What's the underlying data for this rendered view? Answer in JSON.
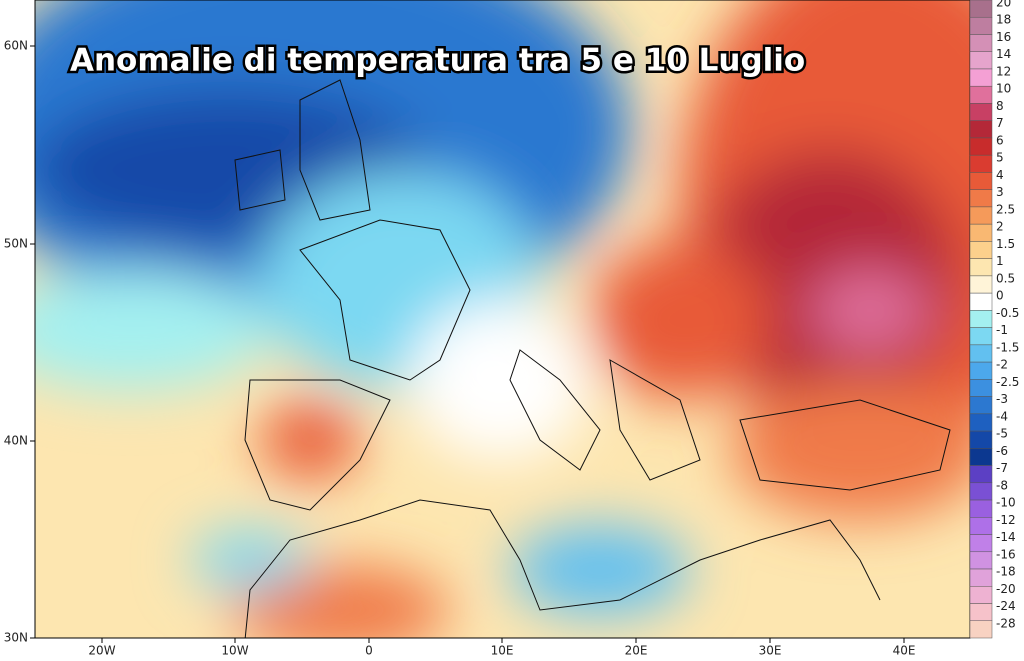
{
  "title": "Anomalie di temperatura tra 5 e 10 Luglio",
  "lat_labels": [
    "60N",
    "50N",
    "40N",
    "30N"
  ],
  "lon_labels": [
    "20W",
    "10W",
    "0",
    "10E",
    "20E",
    "30E",
    "40E"
  ],
  "colorbar": [
    {
      "label": "20",
      "color": "#a8708c"
    },
    {
      "label": "18",
      "color": "#be7ea0"
    },
    {
      "label": "16",
      "color": "#d490b6"
    },
    {
      "label": "14",
      "color": "#e6a4cc"
    },
    {
      "label": "12",
      "color": "#f4a0d4"
    },
    {
      "label": "10",
      "color": "#e0709c"
    },
    {
      "label": "8",
      "color": "#c84064"
    },
    {
      "label": "7",
      "color": "#b42838"
    },
    {
      "label": "6",
      "color": "#c82c2c"
    },
    {
      "label": "5",
      "color": "#da3c30"
    },
    {
      "label": "4",
      "color": "#e85a38"
    },
    {
      "label": "3",
      "color": "#f07a48"
    },
    {
      "label": "2.5",
      "color": "#f59a5a"
    },
    {
      "label": "2",
      "color": "#f9b872"
    },
    {
      "label": "1.5",
      "color": "#fcd08c"
    },
    {
      "label": "1",
      "color": "#fde6b0"
    },
    {
      "label": "0.5",
      "color": "#fff4d8"
    },
    {
      "label": "0",
      "color": "#ffffff"
    },
    {
      "label": "-0.5",
      "color": "#a4f0f0"
    },
    {
      "label": "-1",
      "color": "#7cd8f2"
    },
    {
      "label": "-1.5",
      "color": "#62c0f0"
    },
    {
      "label": "-2",
      "color": "#4ca8ec"
    },
    {
      "label": "-2.5",
      "color": "#3c90e0"
    },
    {
      "label": "-3",
      "color": "#2c78d0"
    },
    {
      "label": "-4",
      "color": "#1e60c0"
    },
    {
      "label": "-5",
      "color": "#1448a8"
    },
    {
      "label": "-6",
      "color": "#0c3890"
    },
    {
      "label": "-7",
      "color": "#5c40c4"
    },
    {
      "label": "-8",
      "color": "#7a50d4"
    },
    {
      "label": "-10",
      "color": "#9a60e0"
    },
    {
      "label": "-12",
      "color": "#ae70e8"
    },
    {
      "label": "-14",
      "color": "#c080e8"
    },
    {
      "label": "-16",
      "color": "#d092e2"
    },
    {
      "label": "-18",
      "color": "#e0a2da"
    },
    {
      "label": "-20",
      "color": "#eeb2d2"
    },
    {
      "label": "-24",
      "color": "#f6c2ca"
    },
    {
      "label": "-28",
      "color": "#f8d2c2"
    }
  ]
}
